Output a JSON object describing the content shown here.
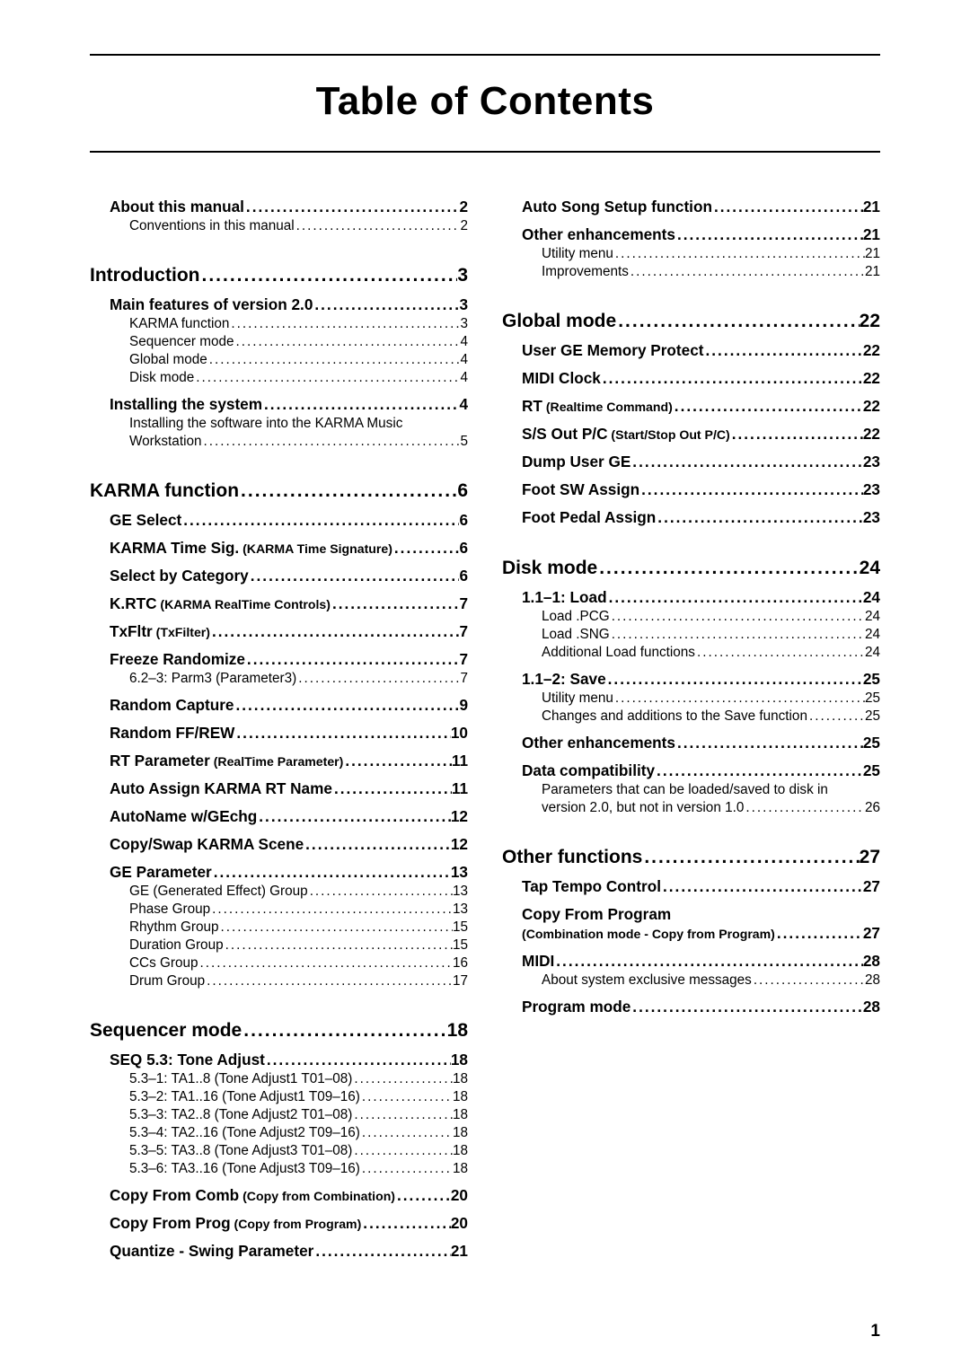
{
  "title": "Table of Contents",
  "page_number": "1",
  "left": [
    {
      "level": 2,
      "label": "About this manual",
      "page": "2",
      "firstTop": true
    },
    {
      "level": 3,
      "label": "Conventions in this manual",
      "page": "2"
    },
    {
      "level": 1,
      "label": "Introduction",
      "page": "3"
    },
    {
      "level": 2,
      "label": "Main features of version 2.0",
      "page": "3"
    },
    {
      "level": 3,
      "label": "KARMA function",
      "page": "3"
    },
    {
      "level": 3,
      "label": "Sequencer mode",
      "page": "4"
    },
    {
      "level": 3,
      "label": "Global mode",
      "page": "4"
    },
    {
      "level": 3,
      "label": "Disk mode",
      "page": "4"
    },
    {
      "level": 2,
      "label": "Installing the system",
      "page": "4"
    },
    {
      "level": 3,
      "wrap": true,
      "text": "Installing the software into the KARMA Music"
    },
    {
      "level": 3,
      "label": "Workstation",
      "page": "5"
    },
    {
      "level": 1,
      "label": "KARMA function",
      "page": "6"
    },
    {
      "level": 2,
      "label": "GE Select",
      "page": "6"
    },
    {
      "level": 2,
      "label": "KARMA Time Sig.",
      "sublabel": " (KARMA Time Signature)",
      "page": "6"
    },
    {
      "level": 2,
      "label": "Select by Category",
      "page": "6"
    },
    {
      "level": 2,
      "label": "K.RTC",
      "sublabel": " (KARMA RealTime Controls)",
      "page": "7"
    },
    {
      "level": 2,
      "label": "TxFltr",
      "sublabel": " (TxFilter)",
      "page": "7"
    },
    {
      "level": 2,
      "label": "Freeze Randomize",
      "page": "7"
    },
    {
      "level": 3,
      "label": "6.2–3: Parm3 (Parameter3)",
      "page": "7"
    },
    {
      "level": 2,
      "label": "Random Capture",
      "page": "9"
    },
    {
      "level": 2,
      "label": "Random FF/REW",
      "page": "10"
    },
    {
      "level": 2,
      "label": "RT Parameter",
      "sublabel": " (RealTime Parameter)",
      "page": "11"
    },
    {
      "level": 2,
      "label": "Auto Assign KARMA RT Name",
      "page": "11"
    },
    {
      "level": 2,
      "label": "AutoName w/GEchg",
      "page": "12"
    },
    {
      "level": 2,
      "label": "Copy/Swap KARMA Scene",
      "page": "12"
    },
    {
      "level": 2,
      "label": "GE Parameter",
      "page": "13"
    },
    {
      "level": 3,
      "label": "GE (Generated Effect) Group",
      "page": "13"
    },
    {
      "level": 3,
      "label": "Phase Group",
      "page": "13"
    },
    {
      "level": 3,
      "label": "Rhythm Group",
      "page": "15"
    },
    {
      "level": 3,
      "label": "Duration Group",
      "page": "15"
    },
    {
      "level": 3,
      "label": "CCs Group",
      "page": "16"
    },
    {
      "level": 3,
      "label": "Drum Group",
      "page": "17"
    },
    {
      "level": 1,
      "label": "Sequencer mode",
      "page": "18"
    },
    {
      "level": 2,
      "label": "SEQ 5.3: Tone Adjust",
      "page": "18"
    },
    {
      "level": 3,
      "label": "5.3–1: TA1..8 (Tone Adjust1 T01–08)",
      "page": "18"
    },
    {
      "level": 3,
      "label": "5.3–2: TA1..16 (Tone Adjust1 T09–16)",
      "page": "18"
    },
    {
      "level": 3,
      "label": "5.3–3: TA2..8 (Tone Adjust2 T01–08)",
      "page": "18"
    },
    {
      "level": 3,
      "label": "5.3–4: TA2..16 (Tone Adjust2 T09–16)",
      "page": "18"
    },
    {
      "level": 3,
      "label": "5.3–5: TA3..8 (Tone Adjust3 T01–08)",
      "page": "18"
    },
    {
      "level": 3,
      "label": "5.3–6: TA3..16 (Tone Adjust3 T09–16)",
      "page": "18"
    },
    {
      "level": 2,
      "label": "Copy From Comb",
      "sublabel": " (Copy from Combination)",
      "page": "20"
    },
    {
      "level": 2,
      "label": "Copy From Prog",
      "sublabel": " (Copy from Program)",
      "page": "20"
    },
    {
      "level": 2,
      "label": "Quantize - Swing Parameter",
      "page": "21"
    }
  ],
  "right": [
    {
      "level": 2,
      "label": "Auto Song Setup function",
      "page": "21",
      "firstTop": true
    },
    {
      "level": 2,
      "label": "Other enhancements",
      "page": "21"
    },
    {
      "level": 3,
      "label": "Utility menu",
      "page": "21"
    },
    {
      "level": 3,
      "label": "Improvements",
      "page": "21"
    },
    {
      "level": 1,
      "label": "Global mode",
      "page": "22"
    },
    {
      "level": 2,
      "label": "User GE Memory Protect",
      "page": "22"
    },
    {
      "level": 2,
      "label": "MIDI Clock",
      "page": "22"
    },
    {
      "level": 2,
      "label": "RT",
      "sublabel": " (Realtime Command)",
      "page": "22"
    },
    {
      "level": 2,
      "label": "S/S Out P/C",
      "sublabel": " (Start/Stop Out P/C)",
      "page": "22"
    },
    {
      "level": 2,
      "label": "Dump User GE",
      "page": "23"
    },
    {
      "level": 2,
      "label": "Foot SW Assign",
      "page": "23"
    },
    {
      "level": 2,
      "label": "Foot Pedal Assign",
      "page": "23"
    },
    {
      "level": 1,
      "label": "Disk mode",
      "page": "24"
    },
    {
      "level": 2,
      "label": "1.1–1: Load",
      "page": "24"
    },
    {
      "level": 3,
      "label": "Load .PCG",
      "page": "24"
    },
    {
      "level": 3,
      "label": "Load .SNG",
      "page": "24"
    },
    {
      "level": 3,
      "label": "Additional Load functions",
      "page": "24"
    },
    {
      "level": 2,
      "label": "1.1–2: Save",
      "page": "25"
    },
    {
      "level": 3,
      "label": "Utility menu",
      "page": "25"
    },
    {
      "level": 3,
      "label": "Changes and additions to the Save function",
      "page": "25"
    },
    {
      "level": 2,
      "label": "Other enhancements",
      "page": "25"
    },
    {
      "level": 2,
      "label": "Data compatibility",
      "page": "25"
    },
    {
      "level": 3,
      "wrap": true,
      "text": "Parameters that can be loaded/saved to disk in"
    },
    {
      "level": 3,
      "label": "version 2.0, but not in version 1.0",
      "page": "26"
    },
    {
      "level": 1,
      "label": "Other functions",
      "page": "27"
    },
    {
      "level": 2,
      "label": "Tap Tempo Control",
      "page": "27"
    },
    {
      "level": 2,
      "nolead": true,
      "label": "Copy From Program"
    },
    {
      "level": 2,
      "sublabelOnly": true,
      "sublabel": "(Combination mode - Copy from Program)",
      "page": "27"
    },
    {
      "level": 2,
      "label": "MIDI",
      "page": "28"
    },
    {
      "level": 3,
      "label": "About system exclusive messages",
      "page": "28"
    },
    {
      "level": 2,
      "label": "Program mode",
      "page": "28"
    }
  ]
}
